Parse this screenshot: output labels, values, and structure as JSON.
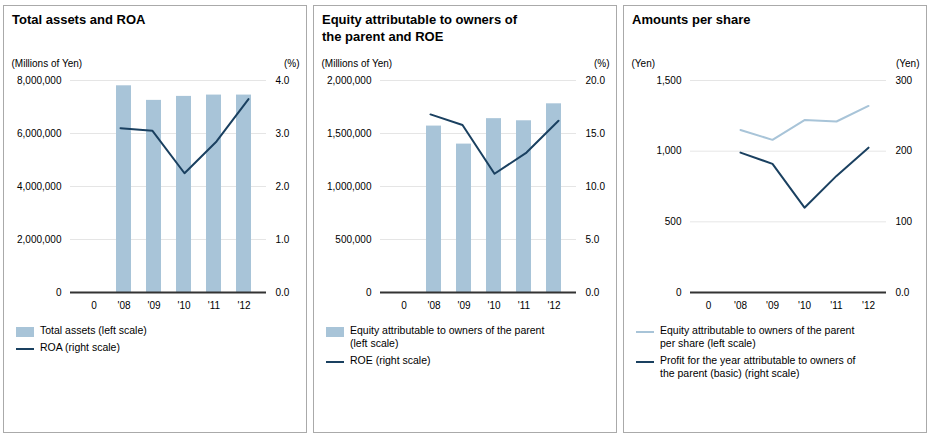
{
  "chart_data": [
    {
      "type": "bar",
      "title": "Total assets and ROA",
      "ylabel": "(Millions of Yen)",
      "y2label": "(%)",
      "categories": [
        "0",
        "'08",
        "'09",
        "'10",
        "'11",
        "'12"
      ],
      "series": [
        {
          "name": "Total assets (left scale)",
          "type": "bar",
          "color": "#a8c4d8",
          "values": [
            null,
            7800000,
            7250000,
            7400000,
            7450000,
            7450000
          ]
        },
        {
          "name": "ROA (right scale)",
          "type": "line",
          "color": "#1a4060",
          "axis": "y2",
          "values": [
            null,
            3.1,
            3.05,
            2.25,
            2.85,
            3.65
          ]
        }
      ],
      "ylim": [
        0,
        8000000
      ],
      "yticks": [
        0,
        {
          "value": 2000000,
          "label": "2,000,000"
        },
        {
          "value": 4000000,
          "label": "4,000,000"
        },
        {
          "value": 6000000,
          "label": "6,000,000"
        },
        {
          "value": 8000000,
          "label": "8,000,000"
        }
      ],
      "y2lim": [
        0,
        4.0
      ],
      "y2ticks": [
        {
          "value": 0,
          "label": "0.0"
        },
        {
          "value": 1.0,
          "label": "1.0"
        },
        {
          "value": 2.0,
          "label": "2.0"
        },
        {
          "value": 3.0,
          "label": "3.0"
        },
        {
          "value": 4.0,
          "label": "4.0"
        }
      ],
      "grid": true,
      "legend": "bottom"
    },
    {
      "type": "bar",
      "title": "Equity attributable to owners of\nthe parent and ROE",
      "ylabel": "(Millions of Yen)",
      "y2label": "(%)",
      "categories": [
        "0",
        "'08",
        "'09",
        "'10",
        "'11",
        "'12"
      ],
      "series": [
        {
          "name": "Equity attributable to owners of the parent\n(left scale)",
          "type": "bar",
          "color": "#a8c4d8",
          "values": [
            null,
            1570000,
            1400000,
            1640000,
            1620000,
            1780000
          ]
        },
        {
          "name": "ROE (right scale)",
          "type": "line",
          "color": "#1a4060",
          "axis": "y2",
          "values": [
            null,
            16.8,
            15.8,
            11.2,
            13.2,
            16.2
          ]
        }
      ],
      "ylim": [
        0,
        2000000
      ],
      "yticks": [
        0,
        {
          "value": 500000,
          "label": "500,000"
        },
        {
          "value": 1000000,
          "label": "1,000,000"
        },
        {
          "value": 1500000,
          "label": "1,500,000"
        },
        {
          "value": 2000000,
          "label": "2,000,000"
        }
      ],
      "y2lim": [
        0,
        20.0
      ],
      "y2ticks": [
        {
          "value": 0,
          "label": "0.0"
        },
        {
          "value": 5.0,
          "label": "5.0"
        },
        {
          "value": 10.0,
          "label": "10.0"
        },
        {
          "value": 15.0,
          "label": "15.0"
        },
        {
          "value": 20.0,
          "label": "20.0"
        }
      ],
      "grid": true,
      "legend": "bottom"
    },
    {
      "type": "line",
      "title": "Amounts per share",
      "ylabel": "(Yen)",
      "y2label": "(Yen)",
      "categories": [
        "0",
        "'08",
        "'09",
        "'10",
        "'11",
        "'12"
      ],
      "series": [
        {
          "name": "Equity attributable to owners of the parent\nper share (left scale)",
          "type": "line",
          "color": "#a8c4d8",
          "values": [
            null,
            1150,
            1080,
            1220,
            1210,
            1320
          ]
        },
        {
          "name": "Profit for the year attributable to owners of\nthe parent (basic) (right scale)",
          "type": "line",
          "color": "#1a4060",
          "axis": "y2",
          "values": [
            null,
            198,
            182,
            120,
            165,
            205
          ]
        }
      ],
      "ylim": [
        0,
        1500
      ],
      "yticks": [
        0,
        500,
        {
          "value": 1000,
          "label": "1,000"
        },
        {
          "value": 1500,
          "label": "1,500"
        }
      ],
      "y2lim": [
        0,
        300
      ],
      "y2ticks": [
        {
          "value": 0,
          "label": "0.0"
        },
        100,
        200,
        300
      ],
      "grid": true,
      "legend": "bottom"
    }
  ]
}
